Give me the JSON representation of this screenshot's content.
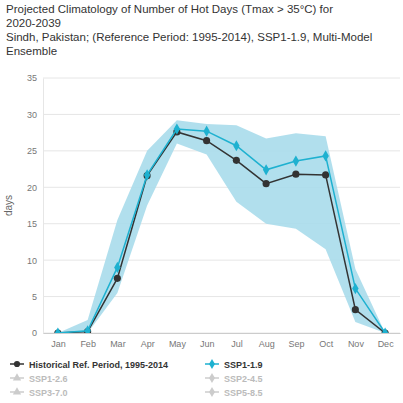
{
  "chart_data": {
    "type": "line",
    "title": "Projected Climatology of Number of Hot Days (Tmax > 35°C) for 2020-2039",
    "subtitle": "Sindh, Pakistan; (Reference Period: 1995-2014), SSP1-1.9, Multi-Model Ensemble",
    "y_label": "days",
    "categories": [
      "Jan",
      "Feb",
      "Mar",
      "Apr",
      "May",
      "Jun",
      "Jul",
      "Aug",
      "Sep",
      "Oct",
      "Nov",
      "Dec"
    ],
    "series": [
      {
        "name": "Historical Ref. Period, 1995-2014",
        "color": "#333333",
        "marker": "circle",
        "values": [
          0,
          0.2,
          7.5,
          21.6,
          27.6,
          26.4,
          23.7,
          20.5,
          21.8,
          21.7,
          3.2,
          0
        ]
      },
      {
        "name": "SSP1-1.9",
        "color": "#1eb1d0",
        "marker": "diamond",
        "values": [
          0,
          0.3,
          9,
          21.7,
          28,
          27.7,
          25.7,
          22.4,
          23.6,
          24.3,
          6.1,
          0
        ]
      },
      {
        "name": "SSP1-2.6",
        "color": "#cccccc",
        "marker": "triangle",
        "values": [
          null,
          null,
          null,
          null,
          null,
          null,
          null,
          null,
          null,
          null,
          null,
          null
        ]
      },
      {
        "name": "SSP2-4.5",
        "color": "#cccccc",
        "marker": "diamond",
        "values": [
          null,
          null,
          null,
          null,
          null,
          null,
          null,
          null,
          null,
          null,
          null,
          null
        ]
      },
      {
        "name": "SSP3-7.0",
        "color": "#cccccc",
        "marker": "triangle",
        "values": [
          null,
          null,
          null,
          null,
          null,
          null,
          null,
          null,
          null,
          null,
          null,
          null
        ]
      },
      {
        "name": "SSP5-8.5",
        "color": "#cccccc",
        "marker": "diamond",
        "values": [
          null,
          null,
          null,
          null,
          null,
          null,
          null,
          null,
          null,
          null,
          null,
          null
        ]
      }
    ],
    "band": {
      "color": "#a9dceb",
      "lower": [
        0,
        0,
        5.5,
        17.5,
        26,
        24.5,
        18,
        15,
        14.3,
        11.5,
        1.5,
        0
      ],
      "upper": [
        0,
        1.8,
        15.5,
        25,
        29.2,
        28.7,
        28.5,
        26.7,
        27.4,
        27,
        8.8,
        0
      ]
    },
    "ylim": [
      0,
      35
    ],
    "yticks": [
      0,
      5,
      10,
      15,
      20,
      25,
      30,
      35
    ],
    "grid": true,
    "legend": "bottom"
  }
}
